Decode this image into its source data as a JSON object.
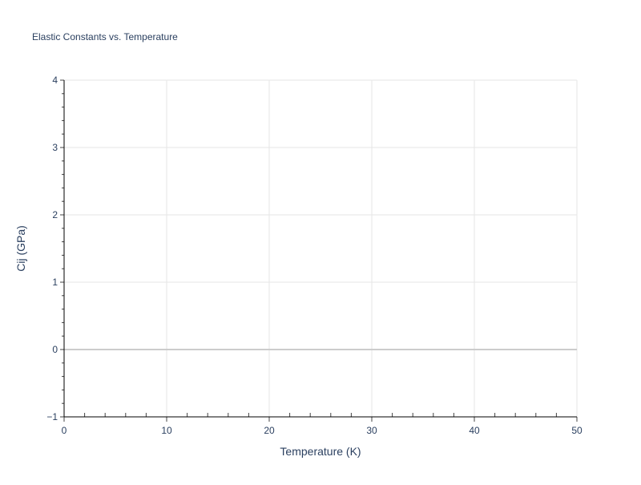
{
  "chart_data": {
    "type": "line",
    "title": "Elastic Constants vs. Temperature",
    "xlabel": "Temperature (K)",
    "ylabel": "Cij (GPa)",
    "xlim": [
      0,
      50
    ],
    "ylim": [
      -1,
      4
    ],
    "xticks": [
      0,
      10,
      20,
      30,
      40,
      50
    ],
    "yticks": [
      -1,
      0,
      1,
      2,
      3,
      4
    ],
    "ytick_labels": [
      "−1",
      "0",
      "1",
      "2",
      "3",
      "4"
    ],
    "x_minor_step": 2,
    "y_minor_step": 0.2,
    "grid": true,
    "series": []
  }
}
